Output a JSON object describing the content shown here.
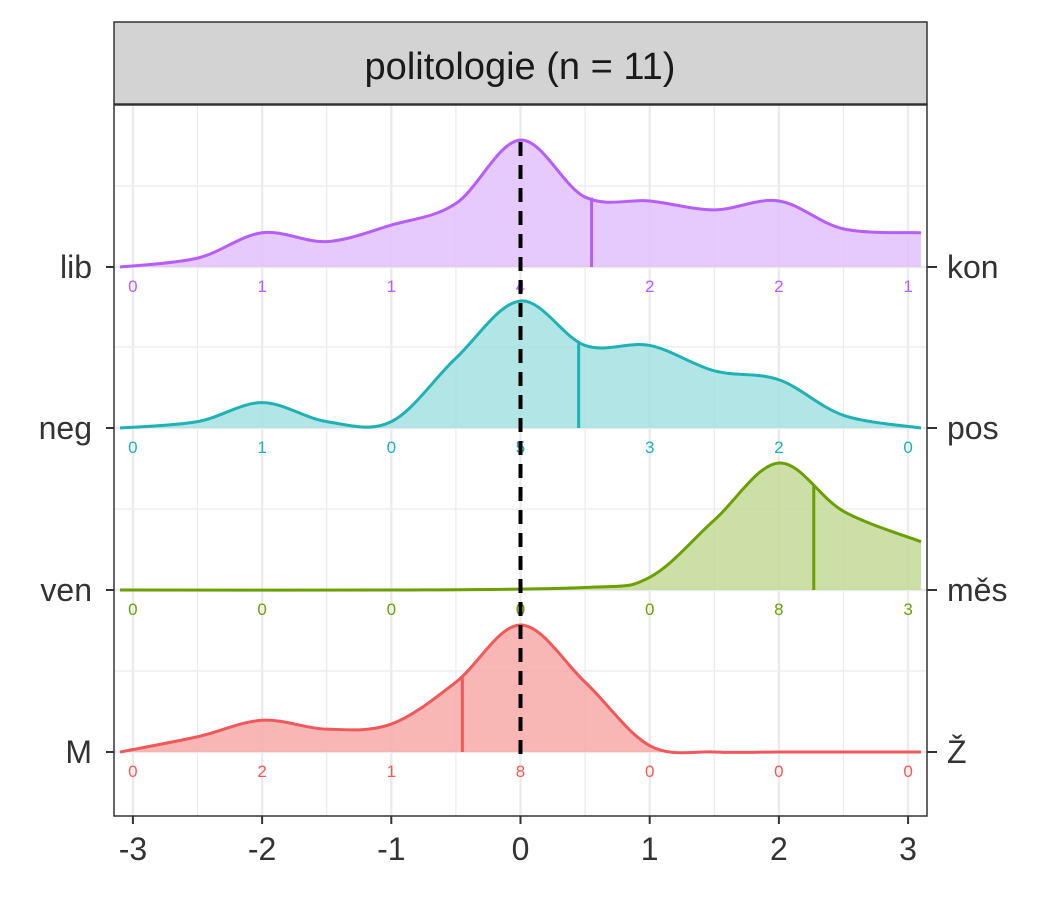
{
  "chart_data": {
    "type": "area",
    "title": "politologie (n = 11)",
    "xlabel": "",
    "ylabel": "",
    "xlim": [
      -3,
      3
    ],
    "x_ticks": [
      "-3",
      "-2",
      "-1",
      "0",
      "1",
      "2",
      "3"
    ],
    "x_tick_values": [
      -3,
      -2,
      -1,
      0,
      1,
      2,
      3
    ],
    "reference_line": {
      "x": 0,
      "style": "dashed",
      "color": "#000000"
    },
    "grid": true,
    "legend": "none",
    "series": [
      {
        "left_label": "M",
        "right_label": "Ž",
        "color": "#f0595b",
        "fill": "#f7a9a8",
        "mean_x": -0.45,
        "counts_x": [
          -3,
          -2,
          -1,
          0,
          1,
          2,
          3
        ],
        "counts": [
          "0",
          "2",
          "1",
          "8",
          "0",
          "0",
          "0"
        ],
        "density_x": [
          -3.1,
          -2.5,
          -2.0,
          -1.5,
          -1.0,
          -0.5,
          0.0,
          0.5,
          1.0,
          1.5,
          2.0,
          2.5,
          3.1
        ],
        "density_y": [
          0.0,
          0.12,
          0.25,
          0.18,
          0.22,
          0.55,
          1.0,
          0.55,
          0.05,
          0.0,
          0.0,
          0.0,
          0.0
        ]
      },
      {
        "left_label": "ven",
        "right_label": "měs",
        "color": "#6ba005",
        "fill": "#c3d996",
        "mean_x": 2.27,
        "counts_x": [
          -3,
          -2,
          -1,
          0,
          1,
          2,
          3
        ],
        "counts": [
          "0",
          "0",
          "0",
          "0",
          "0",
          "8",
          "3"
        ],
        "density_x": [
          -3.1,
          -1.0,
          0.5,
          1.0,
          1.5,
          2.0,
          2.5,
          3.1
        ],
        "density_y": [
          0.0,
          0.0,
          0.02,
          0.1,
          0.55,
          1.0,
          0.62,
          0.38
        ],
        "mean_y": 0.82
      },
      {
        "left_label": "neg",
        "right_label": "pos",
        "color": "#1fb1b5",
        "fill": "#a3e0e2",
        "mean_x": 0.45,
        "counts_x": [
          -3,
          -2,
          -1,
          0,
          1,
          2,
          3
        ],
        "counts": [
          "0",
          "1",
          "0",
          "5",
          "3",
          "2",
          "0"
        ],
        "density_x": [
          -3.1,
          -2.5,
          -2.0,
          -1.5,
          -1.0,
          -0.5,
          0.0,
          0.5,
          1.0,
          1.5,
          2.0,
          2.5,
          3.1
        ],
        "density_y": [
          0.0,
          0.05,
          0.2,
          0.05,
          0.05,
          0.55,
          1.0,
          0.65,
          0.65,
          0.45,
          0.38,
          0.1,
          0.0
        ]
      },
      {
        "left_label": "lib",
        "right_label": "kon",
        "color": "#b65ef7",
        "fill": "#e3c1fd",
        "mean_x": 0.55,
        "counts_x": [
          -3,
          -2,
          -1,
          0,
          1,
          2,
          3
        ],
        "counts": [
          "0",
          "1",
          "1",
          "4",
          "2",
          "2",
          "1"
        ],
        "density_x": [
          -3.1,
          -2.5,
          -2.0,
          -1.5,
          -1.0,
          -0.5,
          0.0,
          0.5,
          1.0,
          1.5,
          2.0,
          2.5,
          3.1
        ],
        "density_y": [
          0.0,
          0.07,
          0.27,
          0.2,
          0.33,
          0.5,
          1.0,
          0.55,
          0.52,
          0.45,
          0.52,
          0.3,
          0.27
        ]
      }
    ]
  }
}
